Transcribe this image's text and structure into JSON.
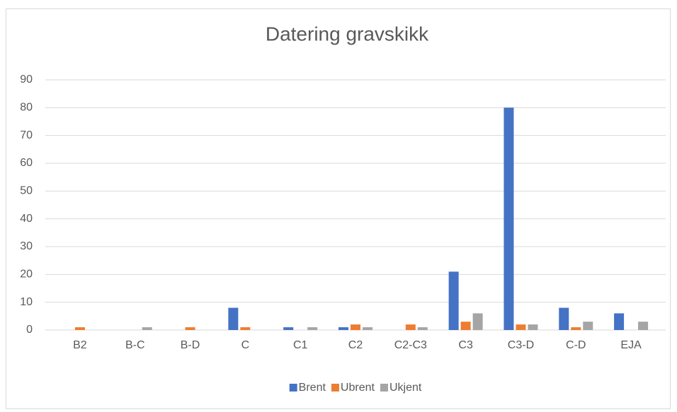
{
  "chart_data": {
    "type": "bar",
    "title": "Datering gravskikk",
    "categories": [
      "B2",
      "B-C",
      "B-D",
      "C",
      "C1",
      "C2",
      "C2-C3",
      "C3",
      "C3-D",
      "C-D",
      "EJA"
    ],
    "series": [
      {
        "name": "Brent",
        "color": "#4472c4",
        "values": [
          0,
          0,
          0,
          8,
          1,
          1,
          0,
          21,
          80,
          8,
          6
        ]
      },
      {
        "name": "Ubrent",
        "color": "#ed7d31",
        "values": [
          1,
          0,
          1,
          1,
          0,
          2,
          2,
          3,
          2,
          1,
          0
        ]
      },
      {
        "name": "Ukjent",
        "color": "#a5a5a5",
        "values": [
          0,
          1,
          0,
          0,
          1,
          1,
          1,
          6,
          2,
          3,
          3
        ]
      }
    ],
    "ylim": [
      0,
      90
    ],
    "yticks": [
      0,
      10,
      20,
      30,
      40,
      50,
      60,
      70,
      80,
      90
    ],
    "grid": true,
    "legend": "bottom"
  }
}
